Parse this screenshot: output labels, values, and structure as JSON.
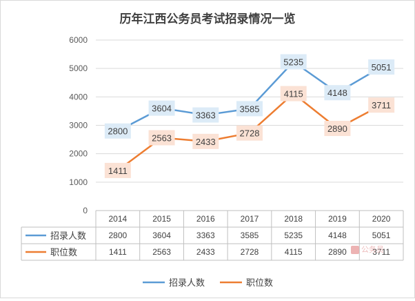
{
  "chart_data": {
    "type": "line",
    "title": "历年江西公务员考试招录情况一览",
    "categories": [
      "2014",
      "2015",
      "2016",
      "2017",
      "2018",
      "2019",
      "2020"
    ],
    "series": [
      {
        "name": "招录人数",
        "color": "#5b9bd5",
        "label_bg": "#dcebf7",
        "values": [
          2800,
          3604,
          3363,
          3585,
          5235,
          4148,
          5051
        ]
      },
      {
        "name": "职位数",
        "color": "#ed7d31",
        "label_bg": "#fbe2d5",
        "values": [
          1411,
          2563,
          2433,
          2728,
          4115,
          2890,
          3711
        ]
      }
    ],
    "y_ticks": [
      "0",
      "1000",
      "2000",
      "3000",
      "4000",
      "5000",
      "6000"
    ],
    "ylim": [
      0,
      6000
    ],
    "grid": true,
    "data_table": true,
    "legend_position": "bottom"
  },
  "watermark": "公务员"
}
